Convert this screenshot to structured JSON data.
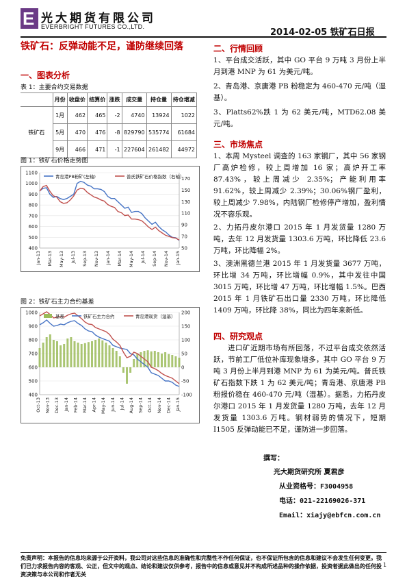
{
  "header": {
    "logo_letter": "E",
    "company_cn": "光大期货有限公司",
    "company_en": "EVERBRIGHT FUTURES CO.,LTD.",
    "report_title": "2014-02-05 铁矿石日报"
  },
  "main_title": "铁矿石：反弹动能不足，谨防继续回落",
  "left": {
    "section1": "一、图表分析",
    "table_caption": "表 1：主要合约交易数据",
    "table": {
      "headers": [
        "月份",
        "收盘价",
        "结算价",
        "涨跌",
        "成交量",
        "持仓量",
        "持仓增减"
      ],
      "row_group": "铁矿石",
      "rows": [
        [
          "1月",
          "462",
          "465",
          "-2",
          "4740",
          "13924",
          "1022"
        ],
        [
          "5月",
          "470",
          "476",
          "-8",
          "829790",
          "535774",
          "61684"
        ],
        [
          "9月",
          "466",
          "471",
          "-1",
          "227604",
          "261482",
          "44972"
        ]
      ]
    },
    "fig1_caption": "图 1：铁矿石价格走势图",
    "fig2_caption": "图 2：铁矿石主力合约基差"
  },
  "chart_data": [
    {
      "type": "line",
      "title": "",
      "series": [
        {
          "name": "青岛港PB粉矿(左轴)",
          "axis": "left",
          "color": "#4472c4",
          "values": [
            930,
            955,
            960,
            900,
            870,
            880,
            860,
            850,
            860,
            880,
            900,
            1000,
            1020,
            1010,
            985,
            975,
            950,
            950,
            945,
            925,
            880,
            860,
            860,
            830,
            800,
            770,
            780,
            730,
            740,
            740,
            720,
            680,
            650,
            620,
            640,
            600,
            570,
            550,
            520,
            500,
            495,
            470
          ]
        },
        {
          "name": "普氏铁矿石价格指数（右轴）",
          "axis": "right",
          "color": "#c0504d",
          "values": [
            148,
            156,
            158,
            148,
            140,
            138,
            130,
            127,
            128,
            133,
            140,
            150,
            153,
            152,
            146,
            142,
            138,
            136,
            133,
            131,
            125,
            122,
            120,
            113,
            111,
            106,
            107,
            100,
            100,
            99,
            97,
            92,
            86,
            82,
            86,
            80,
            76,
            72,
            70,
            68,
            67,
            64
          ]
        }
      ],
      "x_tick_labels": [
        "Jan-13",
        "Mar-13",
        "May-13",
        "Jul-13",
        "Sep-13",
        "Nov-13",
        "Jan-14",
        "Mar-14",
        "May-14",
        "Jul-14",
        "Sep-14",
        "Nov-14",
        "Jan-15"
      ],
      "y_left": {
        "ticks": [
          400,
          500,
          600,
          700,
          800,
          900,
          1000,
          1100
        ],
        "range": [
          400,
          1100
        ]
      },
      "y_right": {
        "ticks": [
          50,
          70,
          90,
          110,
          130,
          150,
          170
        ],
        "range": [
          50,
          180
        ]
      },
      "legend": "top"
    },
    {
      "type": "line",
      "title": "",
      "series": [
        {
          "name": "基差",
          "axis": "right",
          "kind": "bar",
          "color": "#9bbb59",
          "values": [
            70,
            90,
            110,
            120,
            100,
            95,
            80,
            85,
            105,
            110,
            95,
            90,
            85,
            88,
            92,
            95,
            100,
            105,
            98,
            90,
            80,
            70,
            60,
            40,
            -20,
            -60,
            -20,
            30,
            50,
            55,
            60,
            62,
            58,
            60,
            55,
            50,
            55,
            48,
            45,
            40,
            35
          ]
        },
        {
          "name": "铁矿石主力合约",
          "axis": "left",
          "color": "#4472c4",
          "values": [
            910,
            925,
            945,
            920,
            900,
            905,
            915,
            910,
            925,
            935,
            940,
            920,
            905,
            880,
            865,
            860,
            835,
            820,
            810,
            800,
            790,
            760,
            750,
            740,
            735,
            730,
            700,
            690,
            660,
            640,
            620,
            600,
            560,
            550,
            540,
            520,
            500,
            500,
            490,
            470,
            460
          ]
        },
        {
          "name": "青岛港现货（湿基）",
          "axis": "left",
          "color": "#c0504d",
          "values": [
            975,
            990,
            1005,
            985,
            960,
            965,
            970,
            965,
            980,
            990,
            995,
            975,
            955,
            930,
            915,
            912,
            890,
            880,
            870,
            860,
            840,
            805,
            785,
            760,
            710,
            670,
            680,
            710,
            700,
            680,
            660,
            640,
            600,
            590,
            575,
            555,
            540,
            530,
            520,
            500,
            480
          ]
        }
      ],
      "x_tick_labels": [
        "Oct-13",
        "Nov-13",
        "Dec-13",
        "Jan-14",
        "Feb-14",
        "Mar-14",
        "Apr-14",
        "May-14",
        "Jun-14",
        "Jul-14",
        "Aug-14",
        "Sep-14",
        "Oct-14",
        "Nov-14",
        "Dec-14",
        "Jan-15"
      ],
      "y_left": {
        "ticks": [
          400,
          500,
          600,
          700,
          800,
          900,
          1000
        ],
        "range": [
          400,
          1000
        ]
      },
      "y_right": {
        "ticks": [
          -100,
          -50,
          0,
          50,
          100,
          150,
          200
        ],
        "range": [
          -100,
          200
        ]
      },
      "legend": "top"
    }
  ],
  "right": {
    "section2": "二、行情回顾",
    "review": [
      "1、平台成交活跃，其中 GO 平台 9 万吨 3 月份上半月到港 MNP 为 61 为美元/吨。",
      "2、青岛港、京唐港 PB 粉稳定为 460-470 元/吨（湿基）。",
      "3、Platts62%跌 1 为 62 美元/吨，MTD62.08 美元/吨。"
    ],
    "section3": "三、市场焦点",
    "focus": [
      "1、本周 Mysteel 调查的 163 家钢厂，其中 56 家钢厂高炉检修，较上周增加 16 家；高炉开工率 87.43%，较上周减少 2.35%；产能利用率 91.62%，较上周减少 2.39%；30.06%钢厂盈利，较上周减少 7.98%，内陆钢厂检修停产增加，盈利情况不容乐观。",
      "2、力拓丹皮尔港口 2015 年 1 月发货量 1280 万吨，去年 12 月发货量 1303.6 万吨，环比降低 23.6 万吨，环比降幅 2%。",
      "3、澳洲黑德兰港 2015 年 1 月发货量 3677 万吨，环比增 34 万吨，环比增幅 0.9%，其中发往中国 3015 万吨，环比增 47 万吨，环比增幅 1.5%。巴西 2015 年 1 月铁矿石出口量 2330 万吨，环比降低 1409 万吨，环比降 38%，同比为四年来新低。"
    ],
    "section4": "四、研究观点",
    "view": "进口矿近期市场有所回落，不过平台成交依然活跃，节前工厂低位补库现象增多，其中 GO 平台 9 万吨 3 月份上半月到港 MNP 为 61 为美元/吨。普氏铁矿石指数下跌 1 为 62 美元/吨；青岛港、京唐港 PB 粉报价稳在 460-470 元/吨（湿基）。据悉，力拓丹皮尔港口 2015 年 1 月发货量 1280 万吨，去年 12 月发货量 1303.6 万吨。钢材弱势的情况下，短期 I1505 反弹动能已不足，谨防进一步回落。",
    "author": {
      "label": "撰写：",
      "org": "光大期货研究所 夏君彦",
      "cert": "从业资格号：F3004958",
      "phone": "电话：021-22169026-371",
      "email": "Email：xiajy@ebfcn.com.cn"
    }
  },
  "footer": {
    "disclaimer": "免责声明：本报告的信息均来源于公开资料，我公司对这些信息的准确性和完整性不作任何保证，也不保证所包含的信息和建议不会发生任何变更。我们已力求报告内容的客观、公正，但文中的观点、结论和建议仅供参考，报告中的信息或意见并不构成所述品种的操作依据，投资者据此做出的任何投资决策与本公司和作者无关",
    "page": "1"
  }
}
